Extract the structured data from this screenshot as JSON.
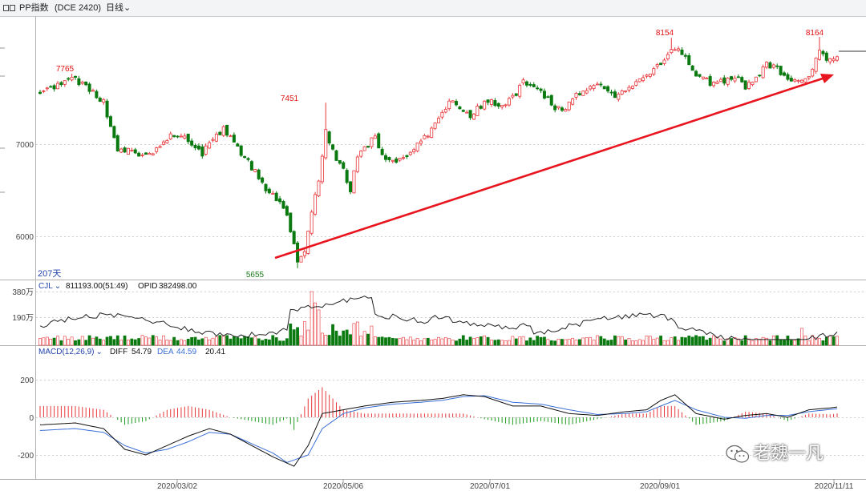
{
  "header": {
    "title": "PP指数",
    "code": "(DCE 2420)",
    "period": "日线"
  },
  "main_chart": {
    "days_label": "207天",
    "price_ticks": [
      "6000",
      "7000"
    ],
    "annotations": [
      {
        "text": "7765",
        "color": "#e01010"
      },
      {
        "text": "7451",
        "color": "#e01010"
      },
      {
        "text": "5655",
        "color": "#1a7a1a"
      },
      {
        "text": "8154",
        "color": "#e01010"
      },
      {
        "text": "8164",
        "color": "#e01010"
      }
    ],
    "trend_arrow_color": "#e8141e"
  },
  "volume_panel": {
    "name": "CJL",
    "value": "811193.00(51:49)",
    "opid_label": "OPID",
    "opid_value": "382498.00",
    "ticks": [
      "380万",
      "190万"
    ]
  },
  "macd_panel": {
    "name": "MACD(12,26,9)",
    "diff_label": "DIFF",
    "diff_value": "54.79",
    "dea_label": "DEA",
    "dea_value": "44.59",
    "macd_value": "20.41",
    "ticks": [
      "200",
      "0",
      "-200"
    ]
  },
  "date_ticks": [
    "2020/03/02",
    "2020/05/06",
    "2020/07/01",
    "2020/09/01",
    "2020/11/11"
  ],
  "watermark": "老魏一凡",
  "colors": {
    "up": "#e8363a",
    "down": "#0a7a10",
    "diff_line": "#111111",
    "dea_line": "#3b6fd6",
    "label_blue": "#2244aa"
  },
  "chart_data": {
    "type": "candlestick",
    "title": "PP指数 (DCE 2420) 日线",
    "x_range": [
      "2020/01",
      "2020/11/11"
    ],
    "date_ticks": [
      "2020/03/02",
      "2020/05/06",
      "2020/07/01",
      "2020/09/01",
      "2020/11/11"
    ],
    "y_ticks": [
      6000,
      7000
    ],
    "extremes": {
      "high_jan": 7765,
      "rebound_high": 7451,
      "low": 5655,
      "high_sep": 8154,
      "high_nov": 8164
    },
    "close_path": [
      [
        0,
        7560
      ],
      [
        3,
        7590
      ],
      [
        6,
        7660
      ],
      [
        9,
        7740
      ],
      [
        12,
        7650
      ],
      [
        15,
        7580
      ],
      [
        18,
        7450
      ],
      [
        22,
        6900
      ],
      [
        25,
        6950
      ],
      [
        28,
        6870
      ],
      [
        31,
        6880
      ],
      [
        34,
        6960
      ],
      [
        37,
        7120
      ],
      [
        40,
        7080
      ],
      [
        43,
        7020
      ],
      [
        46,
        6900
      ],
      [
        49,
        7080
      ],
      [
        52,
        7160
      ],
      [
        55,
        7020
      ],
      [
        58,
        6850
      ],
      [
        61,
        6700
      ],
      [
        64,
        6520
      ],
      [
        67,
        6420
      ],
      [
        70,
        6260
      ],
      [
        73,
        5720
      ],
      [
        75,
        5850
      ],
      [
        77,
        6250
      ],
      [
        79,
        6600
      ],
      [
        81,
        7160
      ],
      [
        84,
        6800
      ],
      [
        86,
        6720
      ],
      [
        88,
        6500
      ],
      [
        90,
        6880
      ],
      [
        92,
        6960
      ],
      [
        95,
        7080
      ],
      [
        98,
        6800
      ],
      [
        101,
        6790
      ],
      [
        104,
        6880
      ],
      [
        107,
        7000
      ],
      [
        110,
        7100
      ],
      [
        113,
        7280
      ],
      [
        116,
        7480
      ],
      [
        119,
        7380
      ],
      [
        122,
        7300
      ],
      [
        125,
        7420
      ],
      [
        128,
        7480
      ],
      [
        131,
        7400
      ],
      [
        134,
        7500
      ],
      [
        137,
        7680
      ],
      [
        140,
        7640
      ],
      [
        143,
        7520
      ],
      [
        146,
        7400
      ],
      [
        149,
        7380
      ],
      [
        152,
        7520
      ],
      [
        155,
        7580
      ],
      [
        158,
        7650
      ],
      [
        161,
        7550
      ],
      [
        164,
        7520
      ],
      [
        167,
        7640
      ],
      [
        170,
        7700
      ],
      [
        173,
        7780
      ],
      [
        176,
        7860
      ],
      [
        179,
        8050
      ],
      [
        182,
        8000
      ],
      [
        185,
        7800
      ],
      [
        188,
        7700
      ],
      [
        191,
        7650
      ],
      [
        194,
        7680
      ],
      [
        197,
        7740
      ],
      [
        200,
        7600
      ],
      [
        203,
        7730
      ],
      [
        206,
        7880
      ],
      [
        209,
        7820
      ],
      [
        212,
        7720
      ],
      [
        215,
        7680
      ],
      [
        218,
        7750
      ],
      [
        221,
        8020
      ],
      [
        224,
        7900
      ],
      [
        226,
        7950
      ]
    ],
    "volume": {
      "unit": "万",
      "y_ticks": [
        190,
        380
      ],
      "last": 811193.0,
      "opid_last": 382498.0
    },
    "macd": {
      "params": [
        12,
        26,
        9
      ],
      "y_ticks": [
        -200,
        0,
        200
      ],
      "last": {
        "diff": 54.79,
        "dea": 44.59,
        "macd": 20.41
      },
      "diff_path": [
        [
          0,
          -40
        ],
        [
          10,
          -30
        ],
        [
          18,
          -60
        ],
        [
          24,
          -170
        ],
        [
          30,
          -200
        ],
        [
          36,
          -150
        ],
        [
          42,
          -100
        ],
        [
          48,
          -60
        ],
        [
          54,
          -90
        ],
        [
          60,
          -150
        ],
        [
          66,
          -210
        ],
        [
          72,
          -260
        ],
        [
          76,
          -150
        ],
        [
          80,
          20
        ],
        [
          86,
          40
        ],
        [
          92,
          60
        ],
        [
          100,
          80
        ],
        [
          108,
          90
        ],
        [
          114,
          100
        ],
        [
          120,
          120
        ],
        [
          126,
          110
        ],
        [
          134,
          60
        ],
        [
          142,
          60
        ],
        [
          150,
          20
        ],
        [
          158,
          10
        ],
        [
          166,
          30
        ],
        [
          172,
          40
        ],
        [
          176,
          90
        ],
        [
          180,
          120
        ],
        [
          186,
          20
        ],
        [
          194,
          -10
        ],
        [
          200,
          10
        ],
        [
          206,
          20
        ],
        [
          212,
          0
        ],
        [
          218,
          40
        ],
        [
          224,
          50
        ],
        [
          226,
          55
        ]
      ],
      "dea_path": [
        [
          0,
          -70
        ],
        [
          10,
          -60
        ],
        [
          18,
          -80
        ],
        [
          24,
          -150
        ],
        [
          30,
          -190
        ],
        [
          36,
          -170
        ],
        [
          42,
          -130
        ],
        [
          48,
          -80
        ],
        [
          54,
          -90
        ],
        [
          60,
          -140
        ],
        [
          66,
          -190
        ],
        [
          70,
          -240
        ],
        [
          76,
          -200
        ],
        [
          80,
          -60
        ],
        [
          86,
          20
        ],
        [
          92,
          50
        ],
        [
          100,
          70
        ],
        [
          108,
          80
        ],
        [
          114,
          90
        ],
        [
          120,
          110
        ],
        [
          126,
          115
        ],
        [
          134,
          80
        ],
        [
          142,
          70
        ],
        [
          150,
          40
        ],
        [
          158,
          15
        ],
        [
          166,
          20
        ],
        [
          172,
          30
        ],
        [
          176,
          60
        ],
        [
          180,
          90
        ],
        [
          186,
          40
        ],
        [
          194,
          0
        ],
        [
          200,
          -5
        ],
        [
          206,
          10
        ],
        [
          212,
          10
        ],
        [
          218,
          30
        ],
        [
          224,
          42
        ],
        [
          226,
          45
        ]
      ]
    }
  }
}
